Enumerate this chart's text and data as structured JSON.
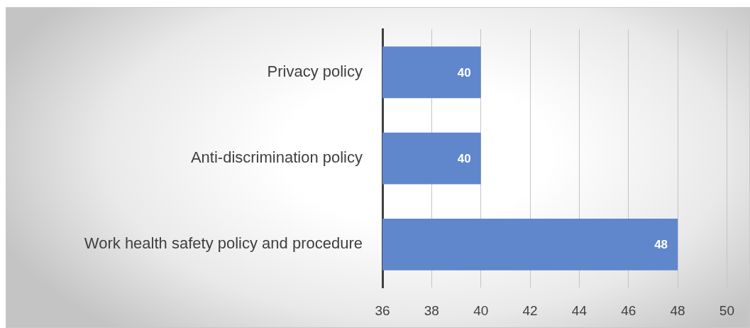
{
  "chart_data": {
    "type": "bar",
    "orientation": "horizontal",
    "categories": [
      "Privacy policy",
      "Anti-discrimination policy",
      "Work health safety policy and procedure"
    ],
    "values": [
      40,
      40,
      48
    ],
    "color": "#6086cb",
    "xlim": [
      36,
      50
    ],
    "xticks": [
      36,
      38,
      40,
      42,
      44,
      46,
      48,
      50
    ],
    "grid": "x",
    "data_labels": true
  }
}
